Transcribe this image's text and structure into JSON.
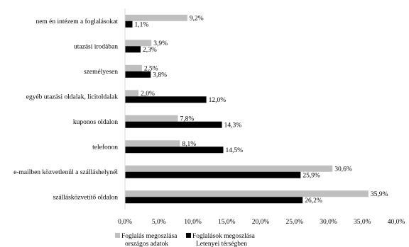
{
  "chart_data": {
    "type": "bar",
    "orientation": "horizontal",
    "title": "",
    "xlabel": "",
    "ylabel": "",
    "xlim": [
      0,
      40
    ],
    "x_ticks": [
      "0,0%",
      "5,0%",
      "10,0%",
      "15,0%",
      "20,0%",
      "25,0%",
      "30,0%",
      "35,0%",
      "40,0%"
    ],
    "grid": false,
    "legend_position": "bottom",
    "categories": [
      "nem én intézem a foglalásokat",
      "utazási irodában",
      "személyesen",
      "egyéb utazási oldalak, licitoldalak",
      "kuponos oldalon",
      "telefonon",
      "e-mailben közvetlenül a szálláshelynél",
      "szállásközvetítő oldalon"
    ],
    "series": [
      {
        "name": [
          "Foglalás megoszlása",
          "országos adatok"
        ],
        "color": "#bfbfbf",
        "values": [
          9.2,
          3.9,
          2.5,
          2.0,
          7.8,
          8.1,
          30.6,
          35.9
        ],
        "labels": [
          "9,2%",
          "3,9%",
          "2,5%",
          "2,0%",
          "7,8%",
          "8,1%",
          "30,6%",
          "35,9%"
        ]
      },
      {
        "name": [
          "Foglalások megoszlása",
          "Letenyei  térségben"
        ],
        "color": "#000000",
        "values": [
          1.1,
          2.3,
          3.8,
          12.0,
          14.3,
          14.5,
          25.9,
          26.2
        ],
        "labels": [
          "1,1%",
          "2,3%",
          "3,8%",
          "12,0%",
          "14,3%",
          "14,5%",
          "25,9%",
          "26,2%"
        ]
      }
    ]
  }
}
